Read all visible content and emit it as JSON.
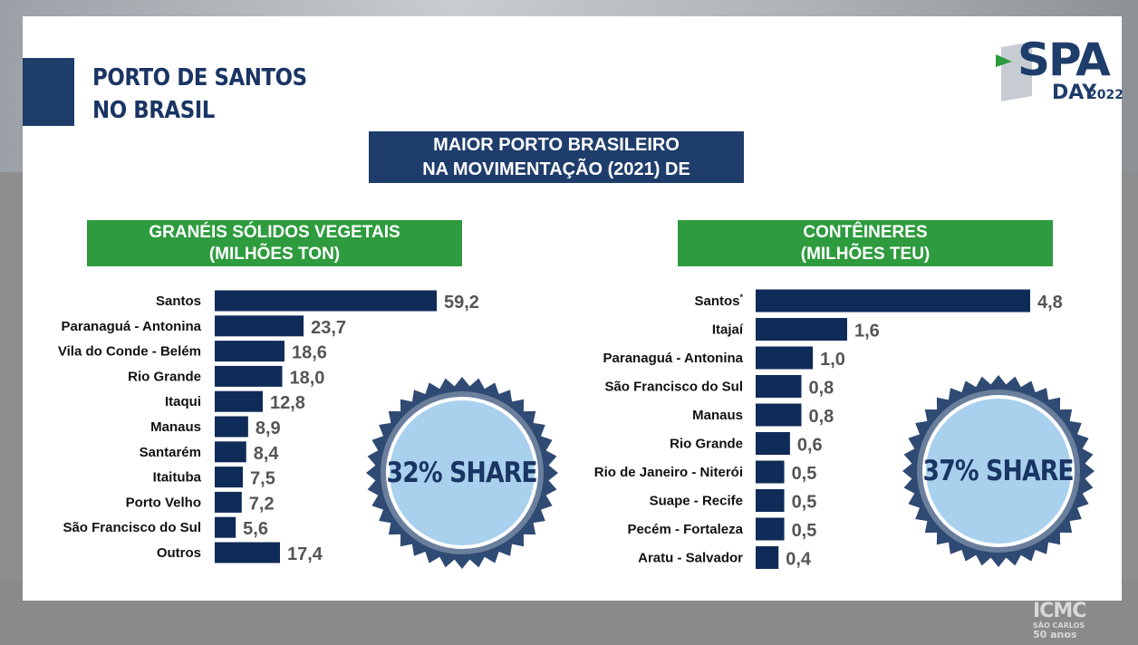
{
  "slide": {
    "title_line1": "PORTO DE SANTOS",
    "title_line2": "NO BRASIL",
    "banner_line1": "MAIOR PORTO BRASILEIRO",
    "banner_line2": "NA MOVIMENTAÇÃO (2021) DE",
    "logo": {
      "word": "SPA",
      "day": "DAY",
      "year": "2022"
    },
    "footer_logo": {
      "name": "ICMC",
      "city": "SÃO CARLOS",
      "years": "50 anos"
    },
    "colors": {
      "navy": "#1f3d6b",
      "bar": "#0f2b57",
      "green": "#2e9b3e",
      "badge_fill": "#a9d1ee",
      "value_text": "#555555"
    }
  },
  "left_panel": {
    "header_line1": "GRANÉIS SÓLIDOS VEGETAIS",
    "header_line2": "(MILHÕES TON)",
    "badge": "32% SHARE"
  },
  "right_panel": {
    "header_line1": "CONTÊINERES",
    "header_line2": "(MILHÕES TEU)",
    "badge": "37% SHARE"
  },
  "chart_data": [
    {
      "type": "bar",
      "orientation": "horizontal",
      "title": "GRANÉIS SÓLIDOS VEGETAIS (MILHÕES TON)",
      "categories": [
        "Santos",
        "Paranaguá - Antonina",
        "Vila do Conde - Belém",
        "Rio Grande",
        "Itaqui",
        "Manaus",
        "Santarém",
        "Itaituba",
        "Porto Velho",
        "São Francisco do Sul",
        "Outros"
      ],
      "values": [
        59.2,
        23.7,
        18.6,
        18.0,
        12.8,
        8.9,
        8.4,
        7.5,
        7.2,
        5.6,
        17.4
      ],
      "value_labels": [
        "59,2",
        "23,7",
        "18,6",
        "18,0",
        "12,8",
        "8,9",
        "8,4",
        "7,5",
        "7,2",
        "5,6",
        "17,4"
      ],
      "grid": false
    },
    {
      "type": "bar",
      "orientation": "horizontal",
      "title": "CONTÊINERES (MILHÕES TEU)",
      "categories": [
        "Santos",
        "Itajaí",
        "Paranaguá - Antonina",
        "São Francisco do Sul",
        "Manaus",
        "Rio Grande",
        "Rio de Janeiro -  Niterói",
        "Suape - Recife",
        "Pecém - Fortaleza",
        "Aratu - Salvador"
      ],
      "category_marks": [
        "*",
        "",
        "",
        "",
        "",
        "",
        "",
        "",
        "",
        ""
      ],
      "values": [
        4.8,
        1.6,
        1.0,
        0.8,
        0.8,
        0.6,
        0.5,
        0.5,
        0.5,
        0.4
      ],
      "value_labels": [
        "4,8",
        "1,6",
        "1,0",
        "0,8",
        "0,8",
        "0,6",
        "0,5",
        "0,5",
        "0,5",
        "0,4"
      ],
      "grid": false
    }
  ]
}
